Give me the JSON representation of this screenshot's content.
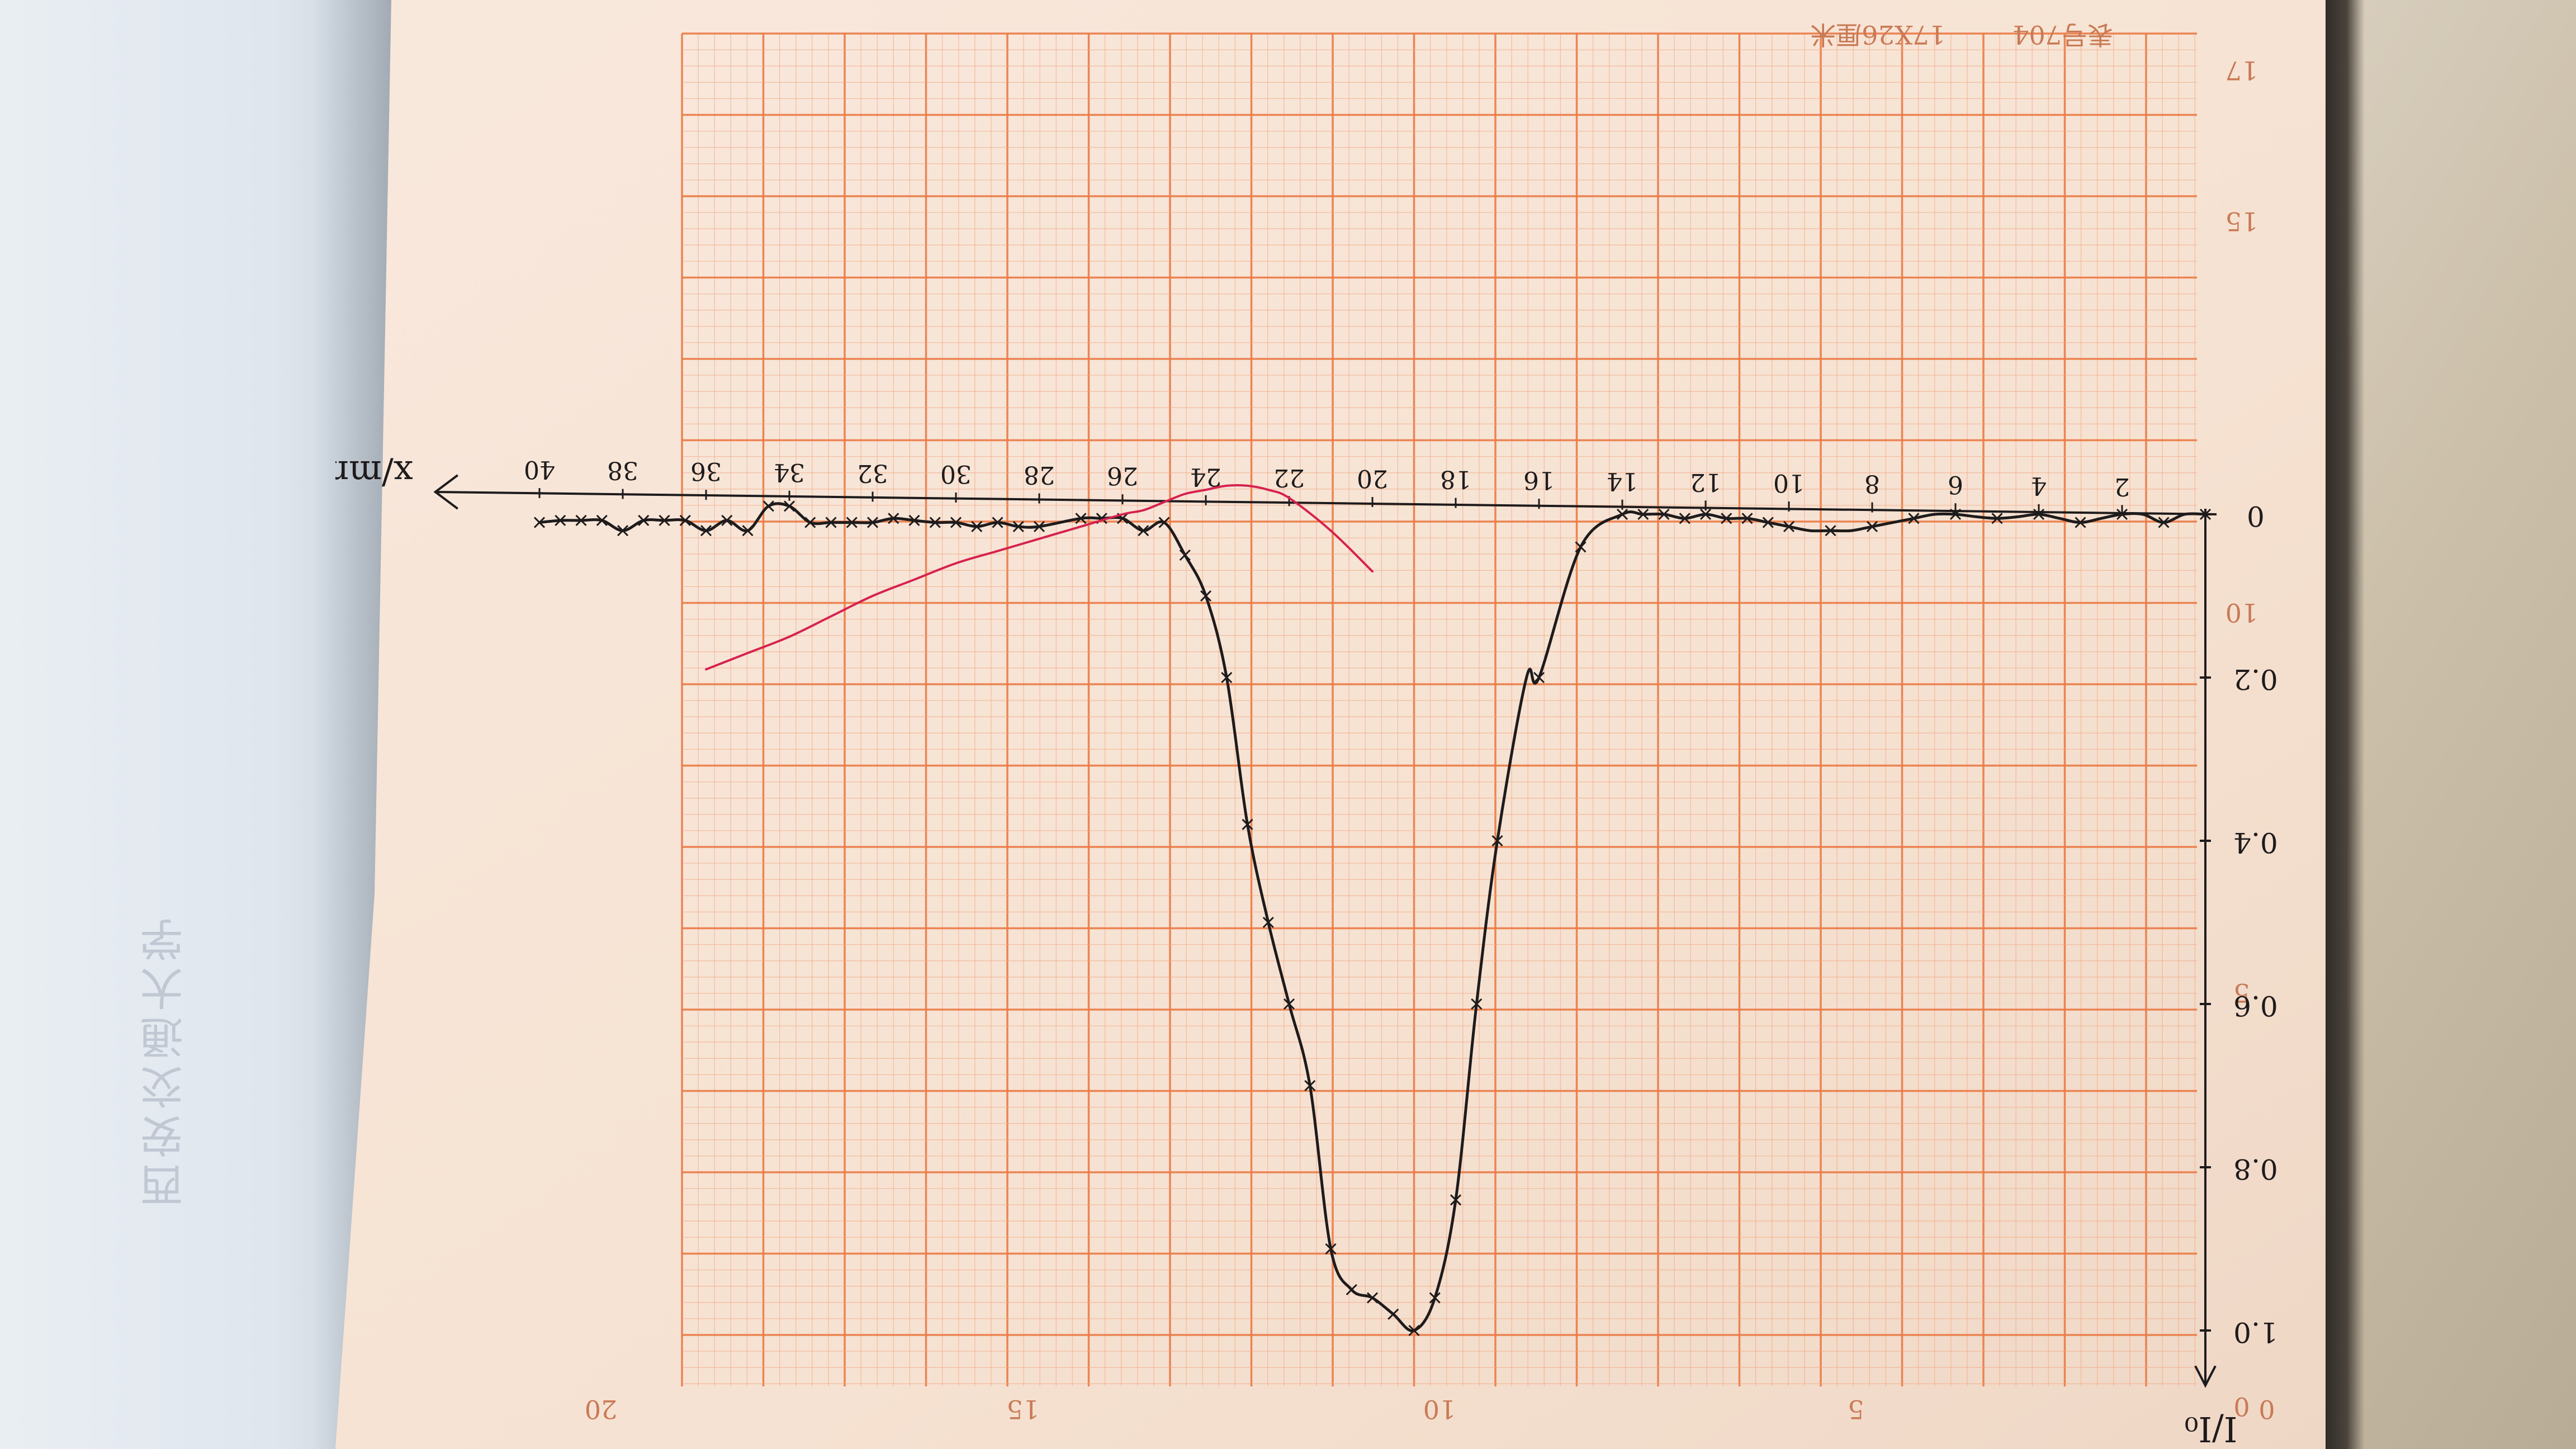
{
  "header": {
    "form_code": "表号704",
    "paper_spec": "17X26厘米"
  },
  "handwriting": {
    "x_axis_label": "x/mm",
    "y_axis_label": "I/I₀",
    "x_tick_labels": [
      "0",
      "2",
      "4",
      "6",
      "8",
      "10",
      "12",
      "14",
      "16",
      "18",
      "20",
      "22",
      "24",
      "26",
      "28",
      "30",
      "32",
      "34",
      "36",
      "38",
      "40"
    ],
    "y_tick_labels": [
      "0",
      "0.2",
      "0.4",
      "0.6",
      "0.8",
      "1.0"
    ]
  },
  "paper_numbers": {
    "right_edge": [
      "17",
      "15",
      "10",
      "5",
      "0"
    ],
    "bottom_edge": [
      "20",
      "15",
      "10",
      "5",
      "0"
    ]
  },
  "ghost_text": "西安交通大学",
  "colors": {
    "paper": "#f6e3d3",
    "grid_fine": "#f3a680",
    "grid_major": "#eb7a45",
    "ink": "#1e1b1c",
    "red_ink": "#d6224f"
  },
  "chart_data": {
    "type": "line",
    "xlabel": "x/mm",
    "ylabel": "I/I₀",
    "xlim": [
      0,
      40
    ],
    "ylim": [
      -0.02,
      1.0
    ],
    "series": [
      {
        "x": [
          0,
          0.5,
          1,
          1.5,
          2,
          2.5,
          3,
          3.5,
          4,
          4.5,
          5,
          5.5,
          6,
          6.5,
          7,
          7.5,
          8,
          8.5,
          9,
          9.5,
          10,
          10.5,
          11,
          11.5,
          12,
          12.5,
          13,
          13.5,
          14,
          15,
          16,
          16.3,
          17,
          17.5,
          18,
          18.5,
          19,
          19.5,
          20,
          20.5,
          21,
          21.5,
          22,
          22.5,
          23,
          23.5,
          24,
          24.5,
          25,
          25.5,
          26,
          26.5,
          27,
          28,
          28.5,
          29,
          29.5,
          30,
          30.5,
          31,
          31.5,
          32,
          32.5,
          33,
          33.5,
          34,
          34.5,
          35,
          35.5,
          36,
          36.5,
          37,
          37.5,
          38,
          38.5,
          39,
          39.5,
          40
        ],
        "y": [
          0,
          0,
          0.01,
          0,
          0,
          0.005,
          0.01,
          0.005,
          0,
          0.003,
          0.005,
          0.003,
          0,
          0,
          0.005,
          0.01,
          0.015,
          0.02,
          0.02,
          0.02,
          0.015,
          0.01,
          0.005,
          0.005,
          0,
          0.005,
          0,
          0,
          0,
          0.04,
          0.2,
          0.2,
          0.4,
          0.6,
          0.84,
          0.96,
          1.0,
          0.98,
          0.96,
          0.95,
          0.9,
          0.7,
          0.6,
          0.5,
          0.38,
          0.2,
          0.1,
          0.05,
          0.01,
          0.02,
          0.005,
          0.005,
          0.005,
          0.015,
          0.015,
          0.01,
          0.015,
          0.01,
          0.01,
          0.0075,
          0.005,
          0.01,
          0.01,
          0.01,
          0.01,
          -0.01,
          -0.01,
          0.02,
          0.0075,
          0.02,
          0.0075,
          0.0075,
          0.0075,
          0.02,
          0.0075,
          0.0075,
          0.0075,
          0.01
        ]
      },
      {
        "x": [
          20,
          21,
          22,
          22.5,
          23,
          23.5,
          24,
          24.5,
          25,
          25.5,
          26,
          27,
          28,
          29,
          30,
          31,
          32,
          33,
          34,
          35,
          36
        ],
        "y": [
          0.07,
          0.02,
          -0.02,
          -0.03,
          -0.035,
          -0.035,
          -0.03,
          -0.025,
          -0.015,
          -0.005,
          0,
          0.015,
          0.03,
          0.045,
          0.06,
          0.08,
          0.1,
          0.125,
          0.15,
          0.17,
          0.19
        ]
      }
    ]
  }
}
